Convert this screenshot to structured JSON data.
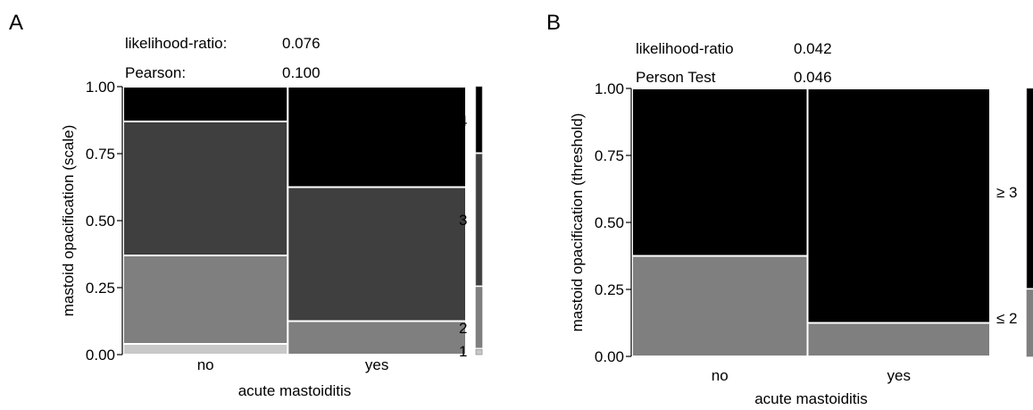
{
  "chart_data": [
    {
      "panel": "A",
      "type": "mosaic",
      "xlabel": "acute mastoiditis",
      "ylabel": "mastoid opacification (scale)",
      "ylim": [
        0,
        1
      ],
      "yticks": [
        "0.00",
        "0.25",
        "0.50",
        "0.75",
        "1.00"
      ],
      "categories": [
        "no",
        "yes"
      ],
      "column_widths": [
        0.48,
        0.52
      ],
      "levels": [
        "1",
        "2",
        "3",
        "4"
      ],
      "colors": [
        "#c8c8c8",
        "#7f7f7f",
        "#3f3f3f",
        "#000000"
      ],
      "values": [
        [
          0.04,
          0.33,
          0.5,
          0.13
        ],
        [
          0.0,
          0.125,
          0.5,
          0.375
        ]
      ],
      "legend_proportions": [
        0.02,
        0.23,
        0.5,
        0.25
      ],
      "stats": [
        {
          "label": "likelihood-ratio:",
          "value": "0.076"
        },
        {
          "label": "Pearson:",
          "value": "0.100"
        }
      ]
    },
    {
      "panel": "B",
      "type": "mosaic",
      "xlabel": "acute mastoiditis",
      "ylabel": "mastoid opacification (threshold)",
      "ylim": [
        0,
        1
      ],
      "yticks": [
        "0.00",
        "0.25",
        "0.50",
        "0.75",
        "1.00"
      ],
      "categories": [
        "no",
        "yes"
      ],
      "column_widths": [
        0.49,
        0.51
      ],
      "levels": [
        "≤ 2",
        "≥ 3"
      ],
      "colors": [
        "#7f7f7f",
        "#000000"
      ],
      "values": [
        [
          0.375,
          0.625
        ],
        [
          0.125,
          0.875
        ]
      ],
      "legend_proportions": [
        0.25,
        0.75
      ],
      "stats": [
        {
          "label": "likelihood-ratio",
          "value": "0.042"
        },
        {
          "label": "Person Test",
          "value": "0.046"
        }
      ]
    }
  ]
}
